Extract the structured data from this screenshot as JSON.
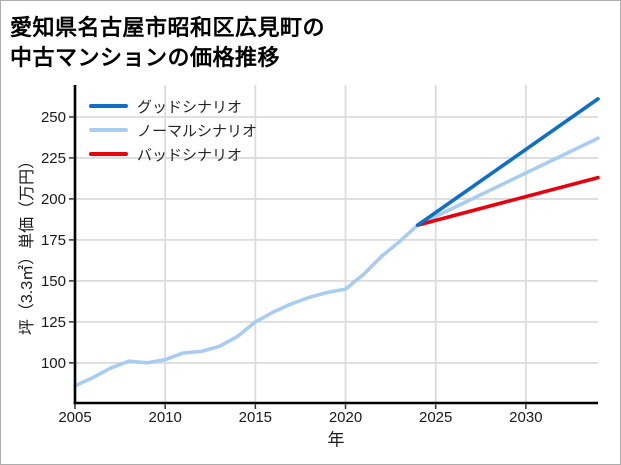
{
  "title": {
    "line1": "愛知県名古屋市昭和区広見町の",
    "line2": "中古マンションの価格推移"
  },
  "chart_data": {
    "type": "line",
    "title": "愛知県名古屋市昭和区広見町の中古マンションの価格推移",
    "xlabel": "年",
    "ylabel": "坪（3.3㎡）単価（万円）",
    "xlim": [
      2005,
      2034
    ],
    "ylim": [
      75.5,
      269.5
    ],
    "x_ticks": [
      2005,
      2010,
      2015,
      2020,
      2025,
      2030
    ],
    "y_ticks": [
      100,
      125,
      150,
      175,
      200,
      225,
      250
    ],
    "grid": true,
    "legend_position": "upper-left",
    "grid_color": "#dcdcdc",
    "series": [
      {
        "name": "グッドシナリオ",
        "color": "#0d6fc5",
        "x": [
          2024,
          2034
        ],
        "y": [
          184,
          261
        ]
      },
      {
        "name": "ノーマルシナリオ",
        "color": "#a9cdf2",
        "x": [
          2005,
          2006,
          2007,
          2008,
          2009,
          2010,
          2011,
          2012,
          2013,
          2014,
          2015,
          2016,
          2017,
          2018,
          2019,
          2020,
          2021,
          2022,
          2023,
          2024,
          2034
        ],
        "y": [
          86,
          91,
          97,
          101,
          100,
          102,
          106,
          107,
          110,
          116,
          125,
          131,
          136,
          140,
          143,
          145,
          154,
          165,
          174,
          184,
          237
        ]
      },
      {
        "name": "バッドシナリオ",
        "color": "#e8000d",
        "x": [
          2024,
          2034
        ],
        "y": [
          184,
          213
        ]
      }
    ]
  }
}
